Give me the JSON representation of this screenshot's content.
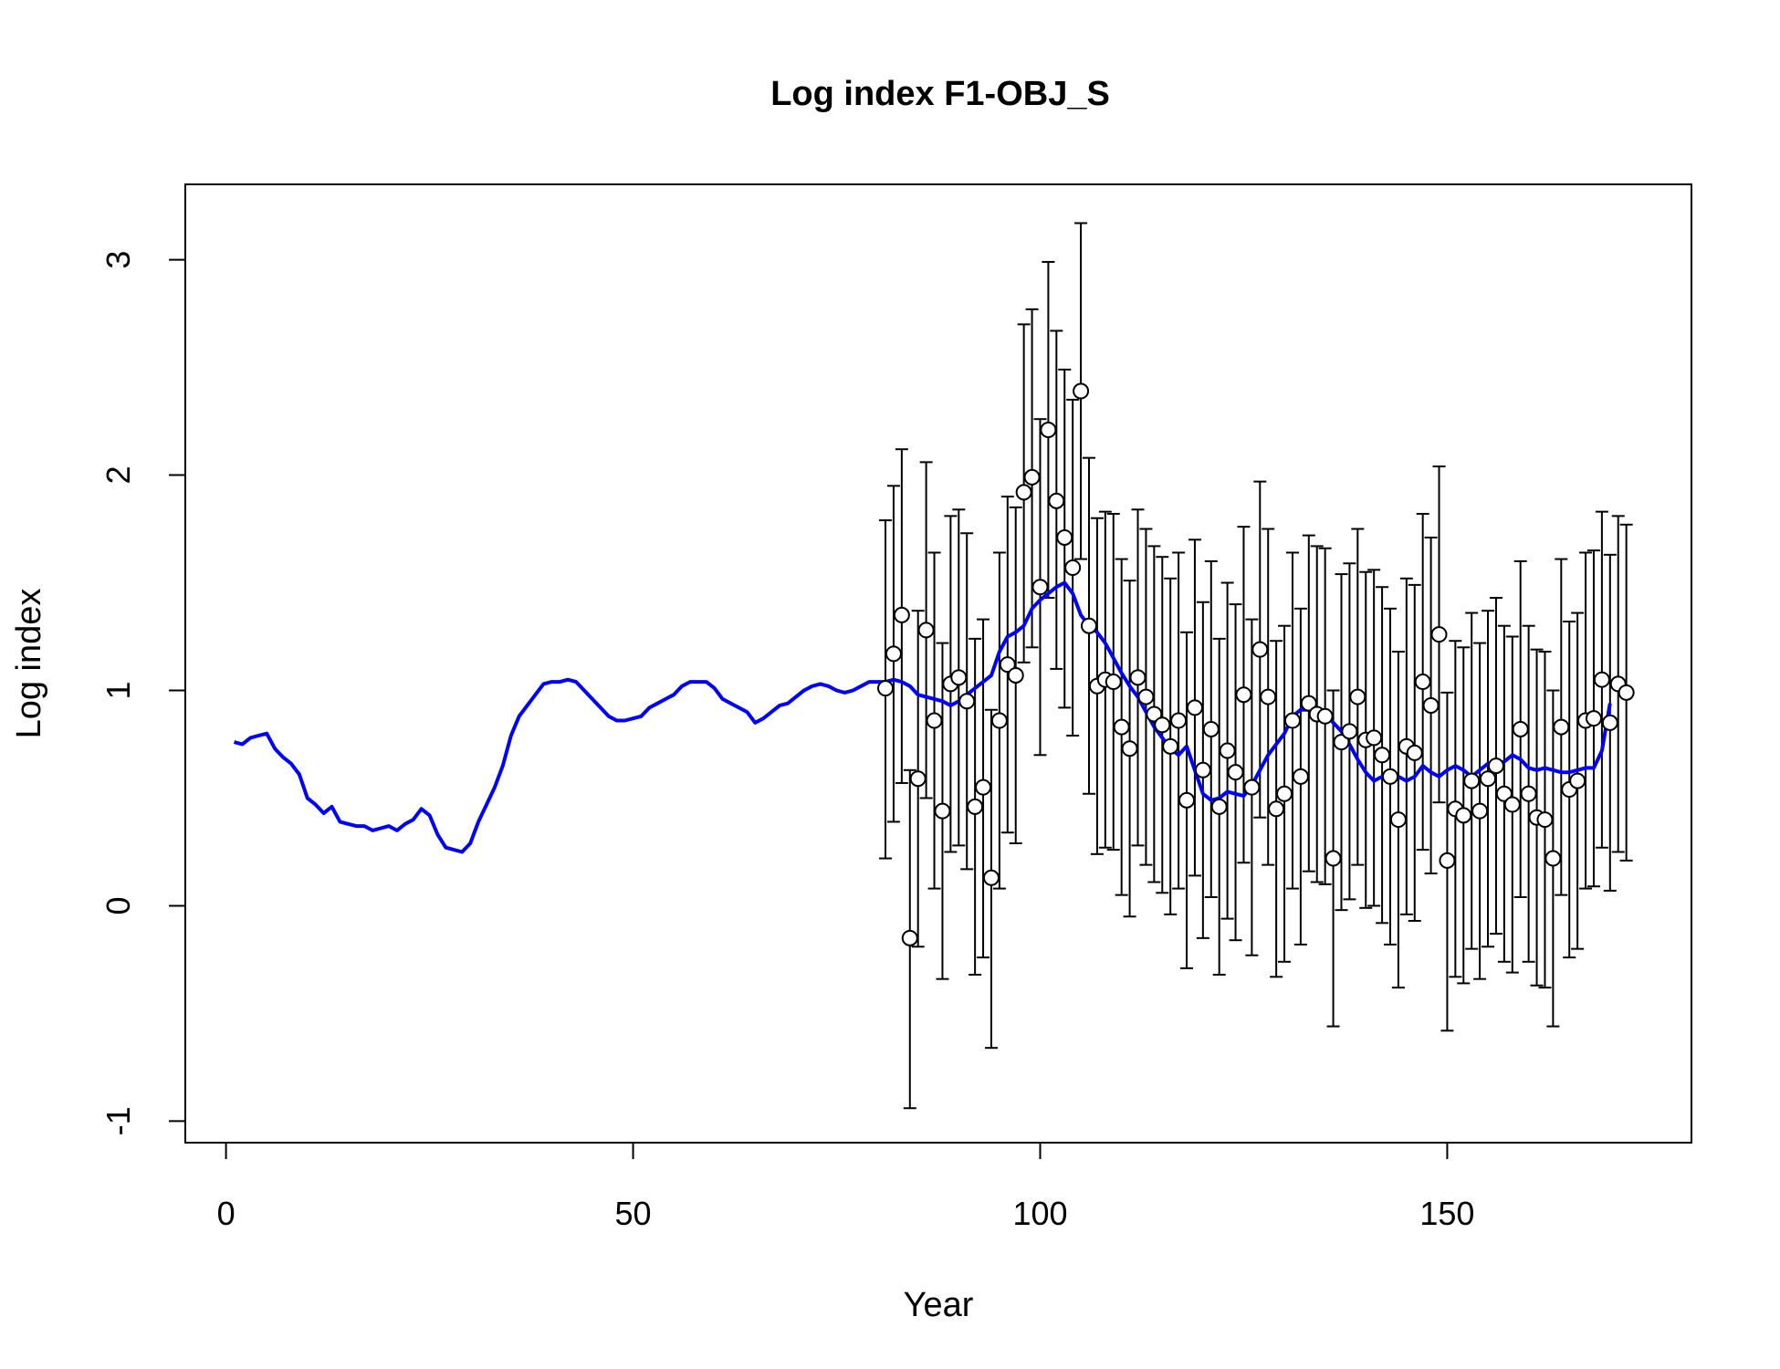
{
  "chart_data": {
    "type": "line",
    "title": "Log index F1-OBJ_S",
    "xlabel": "Year",
    "ylabel": "Log index",
    "xlim": [
      -5,
      180
    ],
    "ylim": [
      -1.1,
      3.35
    ],
    "x_ticks": [
      0,
      50,
      100,
      150
    ],
    "y_ticks": [
      -1,
      0,
      1,
      2,
      3
    ],
    "grid": false,
    "legend": "none",
    "colors": {
      "fitted": "#0000ff",
      "observed_fill": "#ffffff",
      "observed_stroke": "#000000",
      "error_bar": "#000000"
    },
    "fitted_series": {
      "x_start": 1,
      "x_step": 1,
      "values": [
        0.76,
        0.75,
        0.78,
        0.79,
        0.8,
        0.73,
        0.69,
        0.66,
        0.61,
        0.5,
        0.47,
        0.43,
        0.46,
        0.39,
        0.38,
        0.37,
        0.37,
        0.35,
        0.36,
        0.37,
        0.35,
        0.38,
        0.4,
        0.45,
        0.42,
        0.33,
        0.27,
        0.26,
        0.25,
        0.29,
        0.39,
        0.47,
        0.55,
        0.65,
        0.79,
        0.88,
        0.93,
        0.98,
        1.03,
        1.04,
        1.04,
        1.05,
        1.04,
        1.0,
        0.96,
        0.92,
        0.88,
        0.86,
        0.86,
        0.87,
        0.88,
        0.92,
        0.94,
        0.96,
        0.98,
        1.02,
        1.04,
        1.04,
        1.04,
        1.01,
        0.96,
        0.94,
        0.92,
        0.9,
        0.85,
        0.87,
        0.9,
        0.93,
        0.94,
        0.97,
        1.0,
        1.02,
        1.03,
        1.02,
        1.0,
        0.99,
        1.0,
        1.02,
        1.04,
        1.04,
        1.04,
        1.05,
        1.04,
        1.02,
        0.98,
        0.97,
        0.96,
        0.95,
        0.93,
        0.95,
        0.98,
        1.01,
        1.04,
        1.07,
        1.18,
        1.25,
        1.27,
        1.3,
        1.38,
        1.42,
        1.45,
        1.48,
        1.5,
        1.45,
        1.35,
        1.3,
        1.27,
        1.22,
        1.15,
        1.08,
        1.02,
        0.97,
        0.9,
        0.83,
        0.78,
        0.73,
        0.7,
        0.74,
        0.63,
        0.52,
        0.49,
        0.5,
        0.53,
        0.52,
        0.51,
        0.56,
        0.63,
        0.7,
        0.75,
        0.8,
        0.88,
        0.91,
        0.91,
        0.9,
        0.89,
        0.85,
        0.81,
        0.75,
        0.68,
        0.62,
        0.58,
        0.6,
        0.62,
        0.6,
        0.58,
        0.6,
        0.65,
        0.62,
        0.6,
        0.63,
        0.65,
        0.63,
        0.6,
        0.63,
        0.66,
        0.65,
        0.67,
        0.7,
        0.68,
        0.64,
        0.63,
        0.64,
        0.63,
        0.62,
        0.62,
        0.63,
        0.64,
        0.64,
        0.72,
        0.94
      ]
    },
    "observed_points": [
      {
        "x": 81,
        "y": 1.01,
        "lo": 0.22,
        "hi": 1.79
      },
      {
        "x": 82,
        "y": 1.17,
        "lo": 0.39,
        "hi": 1.95
      },
      {
        "x": 83,
        "y": 1.35,
        "lo": 0.57,
        "hi": 2.12
      },
      {
        "x": 84,
        "y": -0.15,
        "lo": -0.94,
        "hi": 0.63
      },
      {
        "x": 85,
        "y": 0.59,
        "lo": -0.19,
        "hi": 1.37
      },
      {
        "x": 86,
        "y": 1.28,
        "lo": 0.5,
        "hi": 2.06
      },
      {
        "x": 87,
        "y": 0.86,
        "lo": 0.08,
        "hi": 1.64
      },
      {
        "x": 88,
        "y": 0.44,
        "lo": -0.34,
        "hi": 1.22
      },
      {
        "x": 89,
        "y": 1.03,
        "lo": 0.25,
        "hi": 1.81
      },
      {
        "x": 90,
        "y": 1.06,
        "lo": 0.28,
        "hi": 1.84
      },
      {
        "x": 91,
        "y": 0.95,
        "lo": 0.17,
        "hi": 1.73
      },
      {
        "x": 92,
        "y": 0.46,
        "lo": -0.32,
        "hi": 1.24
      },
      {
        "x": 93,
        "y": 0.55,
        "lo": -0.24,
        "hi": 1.33
      },
      {
        "x": 94,
        "y": 0.13,
        "lo": -0.66,
        "hi": 0.91
      },
      {
        "x": 95,
        "y": 0.86,
        "lo": 0.08,
        "hi": 1.64
      },
      {
        "x": 96,
        "y": 1.12,
        "lo": 0.34,
        "hi": 1.9
      },
      {
        "x": 97,
        "y": 1.07,
        "lo": 0.29,
        "hi": 1.85
      },
      {
        "x": 98,
        "y": 1.92,
        "lo": 1.13,
        "hi": 2.7
      },
      {
        "x": 99,
        "y": 1.99,
        "lo": 1.2,
        "hi": 2.77
      },
      {
        "x": 100,
        "y": 1.48,
        "lo": 0.7,
        "hi": 2.26
      },
      {
        "x": 101,
        "y": 2.21,
        "lo": 1.43,
        "hi": 2.99
      },
      {
        "x": 102,
        "y": 1.88,
        "lo": 1.1,
        "hi": 2.67
      },
      {
        "x": 103,
        "y": 1.71,
        "lo": 0.92,
        "hi": 2.49
      },
      {
        "x": 104,
        "y": 1.57,
        "lo": 0.79,
        "hi": 2.35
      },
      {
        "x": 105,
        "y": 2.39,
        "lo": 1.61,
        "hi": 3.17
      },
      {
        "x": 106,
        "y": 1.3,
        "lo": 0.52,
        "hi": 2.08
      },
      {
        "x": 107,
        "y": 1.02,
        "lo": 0.24,
        "hi": 1.8
      },
      {
        "x": 108,
        "y": 1.05,
        "lo": 0.27,
        "hi": 1.83
      },
      {
        "x": 109,
        "y": 1.04,
        "lo": 0.26,
        "hi": 1.82
      },
      {
        "x": 110,
        "y": 0.83,
        "lo": 0.05,
        "hi": 1.61
      },
      {
        "x": 111,
        "y": 0.73,
        "lo": -0.05,
        "hi": 1.51
      },
      {
        "x": 112,
        "y": 1.06,
        "lo": 0.28,
        "hi": 1.84
      },
      {
        "x": 113,
        "y": 0.97,
        "lo": 0.19,
        "hi": 1.75
      },
      {
        "x": 114,
        "y": 0.89,
        "lo": 0.11,
        "hi": 1.67
      },
      {
        "x": 115,
        "y": 0.84,
        "lo": 0.06,
        "hi": 1.62
      },
      {
        "x": 116,
        "y": 0.74,
        "lo": -0.04,
        "hi": 1.52
      },
      {
        "x": 117,
        "y": 0.86,
        "lo": 0.08,
        "hi": 1.64
      },
      {
        "x": 118,
        "y": 0.49,
        "lo": -0.29,
        "hi": 1.27
      },
      {
        "x": 119,
        "y": 0.92,
        "lo": 0.14,
        "hi": 1.7
      },
      {
        "x": 120,
        "y": 0.63,
        "lo": -0.15,
        "hi": 1.41
      },
      {
        "x": 121,
        "y": 0.82,
        "lo": 0.04,
        "hi": 1.6
      },
      {
        "x": 122,
        "y": 0.46,
        "lo": -0.32,
        "hi": 1.24
      },
      {
        "x": 123,
        "y": 0.72,
        "lo": -0.06,
        "hi": 1.5
      },
      {
        "x": 124,
        "y": 0.62,
        "lo": -0.16,
        "hi": 1.4
      },
      {
        "x": 125,
        "y": 0.98,
        "lo": 0.2,
        "hi": 1.76
      },
      {
        "x": 126,
        "y": 0.55,
        "lo": -0.23,
        "hi": 1.33
      },
      {
        "x": 127,
        "y": 1.19,
        "lo": 0.41,
        "hi": 1.97
      },
      {
        "x": 128,
        "y": 0.97,
        "lo": 0.19,
        "hi": 1.75
      },
      {
        "x": 129,
        "y": 0.45,
        "lo": -0.33,
        "hi": 1.23
      },
      {
        "x": 130,
        "y": 0.52,
        "lo": -0.26,
        "hi": 1.3
      },
      {
        "x": 131,
        "y": 0.86,
        "lo": 0.08,
        "hi": 1.64
      },
      {
        "x": 132,
        "y": 0.6,
        "lo": -0.18,
        "hi": 1.38
      },
      {
        "x": 133,
        "y": 0.94,
        "lo": 0.16,
        "hi": 1.72
      },
      {
        "x": 134,
        "y": 0.89,
        "lo": 0.11,
        "hi": 1.67
      },
      {
        "x": 135,
        "y": 0.88,
        "lo": 0.1,
        "hi": 1.66
      },
      {
        "x": 136,
        "y": 0.22,
        "lo": -0.56,
        "hi": 1.0
      },
      {
        "x": 137,
        "y": 0.76,
        "lo": -0.02,
        "hi": 1.54
      },
      {
        "x": 138,
        "y": 0.81,
        "lo": 0.03,
        "hi": 1.59
      },
      {
        "x": 139,
        "y": 0.97,
        "lo": 0.19,
        "hi": 1.75
      },
      {
        "x": 140,
        "y": 0.77,
        "lo": -0.01,
        "hi": 1.55
      },
      {
        "x": 141,
        "y": 0.78,
        "lo": 0.0,
        "hi": 1.56
      },
      {
        "x": 142,
        "y": 0.7,
        "lo": -0.08,
        "hi": 1.48
      },
      {
        "x": 143,
        "y": 0.6,
        "lo": -0.18,
        "hi": 1.38
      },
      {
        "x": 144,
        "y": 0.4,
        "lo": -0.38,
        "hi": 1.18
      },
      {
        "x": 145,
        "y": 0.74,
        "lo": -0.04,
        "hi": 1.52
      },
      {
        "x": 146,
        "y": 0.71,
        "lo": -0.07,
        "hi": 1.49
      },
      {
        "x": 147,
        "y": 1.04,
        "lo": 0.26,
        "hi": 1.82
      },
      {
        "x": 148,
        "y": 0.93,
        "lo": 0.15,
        "hi": 1.71
      },
      {
        "x": 149,
        "y": 1.26,
        "lo": 0.48,
        "hi": 2.04
      },
      {
        "x": 150,
        "y": 0.21,
        "lo": -0.58,
        "hi": 0.99
      },
      {
        "x": 151,
        "y": 0.45,
        "lo": -0.33,
        "hi": 1.23
      },
      {
        "x": 152,
        "y": 0.42,
        "lo": -0.36,
        "hi": 1.2
      },
      {
        "x": 153,
        "y": 0.58,
        "lo": -0.2,
        "hi": 1.36
      },
      {
        "x": 154,
        "y": 0.44,
        "lo": -0.34,
        "hi": 1.22
      },
      {
        "x": 155,
        "y": 0.59,
        "lo": -0.19,
        "hi": 1.37
      },
      {
        "x": 156,
        "y": 0.65,
        "lo": -0.13,
        "hi": 1.43
      },
      {
        "x": 157,
        "y": 0.52,
        "lo": -0.26,
        "hi": 1.3
      },
      {
        "x": 158,
        "y": 0.47,
        "lo": -0.31,
        "hi": 1.25
      },
      {
        "x": 159,
        "y": 0.82,
        "lo": 0.04,
        "hi": 1.6
      },
      {
        "x": 160,
        "y": 0.52,
        "lo": -0.26,
        "hi": 1.3
      },
      {
        "x": 161,
        "y": 0.41,
        "lo": -0.37,
        "hi": 1.19
      },
      {
        "x": 162,
        "y": 0.4,
        "lo": -0.38,
        "hi": 1.18
      },
      {
        "x": 163,
        "y": 0.22,
        "lo": -0.56,
        "hi": 1.0
      },
      {
        "x": 164,
        "y": 0.83,
        "lo": 0.05,
        "hi": 1.61
      },
      {
        "x": 165,
        "y": 0.54,
        "lo": -0.24,
        "hi": 1.32
      },
      {
        "x": 166,
        "y": 0.58,
        "lo": -0.2,
        "hi": 1.36
      },
      {
        "x": 167,
        "y": 0.86,
        "lo": 0.08,
        "hi": 1.64
      },
      {
        "x": 168,
        "y": 0.87,
        "lo": 0.09,
        "hi": 1.65
      },
      {
        "x": 169,
        "y": 1.05,
        "lo": 0.27,
        "hi": 1.83
      },
      {
        "x": 170,
        "y": 0.85,
        "lo": 0.07,
        "hi": 1.63
      },
      {
        "x": 171,
        "y": 1.03,
        "lo": 0.25,
        "hi": 1.81
      },
      {
        "x": 172,
        "y": 0.99,
        "lo": 0.21,
        "hi": 1.77
      }
    ]
  }
}
